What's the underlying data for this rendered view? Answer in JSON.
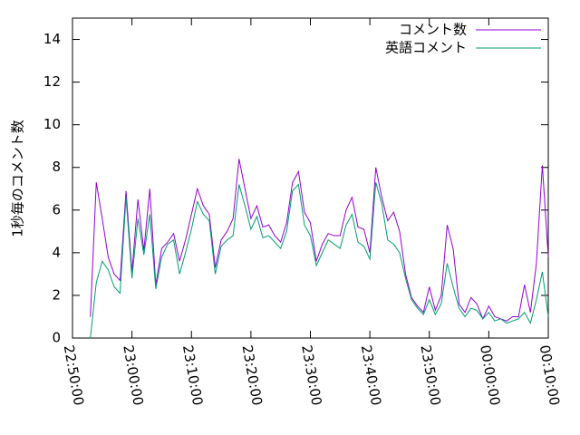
{
  "chart_data": {
    "type": "line",
    "y_label": "1秒毎のコメント数",
    "x": [
      "22:53:00",
      "22:54:00",
      "22:55:00",
      "22:56:00",
      "22:57:00",
      "22:58:00",
      "22:59:00",
      "23:00:00",
      "23:01:00",
      "23:02:00",
      "23:03:00",
      "23:04:00",
      "23:05:00",
      "23:06:00",
      "23:07:00",
      "23:08:00",
      "23:09:00",
      "23:10:00",
      "23:11:00",
      "23:12:00",
      "23:13:00",
      "23:14:00",
      "23:15:00",
      "23:16:00",
      "23:17:00",
      "23:18:00",
      "23:19:00",
      "23:20:00",
      "23:21:00",
      "23:22:00",
      "23:23:00",
      "23:24:00",
      "23:25:00",
      "23:26:00",
      "23:27:00",
      "23:28:00",
      "23:29:00",
      "23:30:00",
      "23:31:00",
      "23:32:00",
      "23:33:00",
      "23:34:00",
      "23:35:00",
      "23:36:00",
      "23:37:00",
      "23:38:00",
      "23:39:00",
      "23:40:00",
      "23:41:00",
      "23:42:00",
      "23:43:00",
      "23:44:00",
      "23:45:00",
      "23:46:00",
      "23:47:00",
      "23:48:00",
      "23:49:00",
      "23:50:00",
      "23:51:00",
      "23:52:00",
      "23:53:00",
      "23:54:00",
      "23:55:00",
      "23:56:00",
      "23:57:00",
      "23:58:00",
      "23:59:00",
      "00:00:00",
      "00:01:00",
      "00:02:00",
      "00:03:00",
      "00:04:00",
      "00:05:00",
      "00:06:00",
      "00:07:00",
      "00:08:00",
      "00:09:00",
      "00:10:00"
    ],
    "series": [
      {
        "name": "コメント数",
        "color": "#9400d3",
        "values": [
          1.0,
          7.3,
          5.6,
          3.8,
          3.0,
          2.7,
          6.9,
          3.1,
          6.5,
          4.1,
          7.0,
          2.5,
          4.2,
          4.5,
          4.9,
          3.6,
          4.6,
          5.8,
          7.0,
          6.2,
          5.8,
          3.3,
          4.6,
          5.0,
          5.6,
          8.4,
          7.0,
          5.6,
          6.2,
          5.2,
          5.3,
          4.8,
          4.5,
          5.4,
          7.3,
          7.8,
          5.9,
          5.4,
          3.6,
          4.4,
          4.9,
          4.8,
          4.8,
          6.0,
          6.6,
          5.2,
          5.1,
          4.0,
          8.0,
          6.6,
          5.5,
          5.9,
          5.0,
          3.0,
          1.9,
          1.5,
          1.2,
          2.4,
          1.3,
          2.0,
          5.3,
          4.2,
          1.6,
          1.2,
          1.9,
          1.6,
          0.9,
          1.5,
          1.0,
          0.9,
          0.8,
          1.0,
          1.0,
          2.5,
          1.2,
          3.5,
          8.1,
          3.8
        ]
      },
      {
        "name": "英語コメント",
        "color": "#009e73",
        "values": [
          0.0,
          2.6,
          3.6,
          3.2,
          2.4,
          2.1,
          6.6,
          2.8,
          5.6,
          3.9,
          5.8,
          2.3,
          3.8,
          4.4,
          4.6,
          3.0,
          4.0,
          5.1,
          6.4,
          5.8,
          5.5,
          3.0,
          4.3,
          4.6,
          4.8,
          7.2,
          6.2,
          5.1,
          5.7,
          4.7,
          4.8,
          4.5,
          4.2,
          5.0,
          6.9,
          7.2,
          5.3,
          4.8,
          3.4,
          4.0,
          4.6,
          4.4,
          4.2,
          5.3,
          5.8,
          4.5,
          4.3,
          3.7,
          7.3,
          6.3,
          4.6,
          4.4,
          4.0,
          2.8,
          1.8,
          1.4,
          1.1,
          1.8,
          1.1,
          1.6,
          3.5,
          2.4,
          1.4,
          1.0,
          1.4,
          1.3,
          0.9,
          1.2,
          0.8,
          0.9,
          0.7,
          0.8,
          0.9,
          1.2,
          0.7,
          1.8,
          3.1,
          1.0
        ]
      }
    ],
    "xlim": [
      "22:50:00",
      "00:10:00"
    ],
    "xticks": [
      "22:50:00",
      "23:00:00",
      "23:10:00",
      "23:20:00",
      "23:30:00",
      "23:40:00",
      "23:50:00",
      "00:00:00",
      "00:10:00"
    ],
    "ylim": [
      0,
      15
    ],
    "yticks": [
      0,
      2,
      4,
      6,
      8,
      10,
      12,
      14
    ],
    "legend": "top-right"
  }
}
